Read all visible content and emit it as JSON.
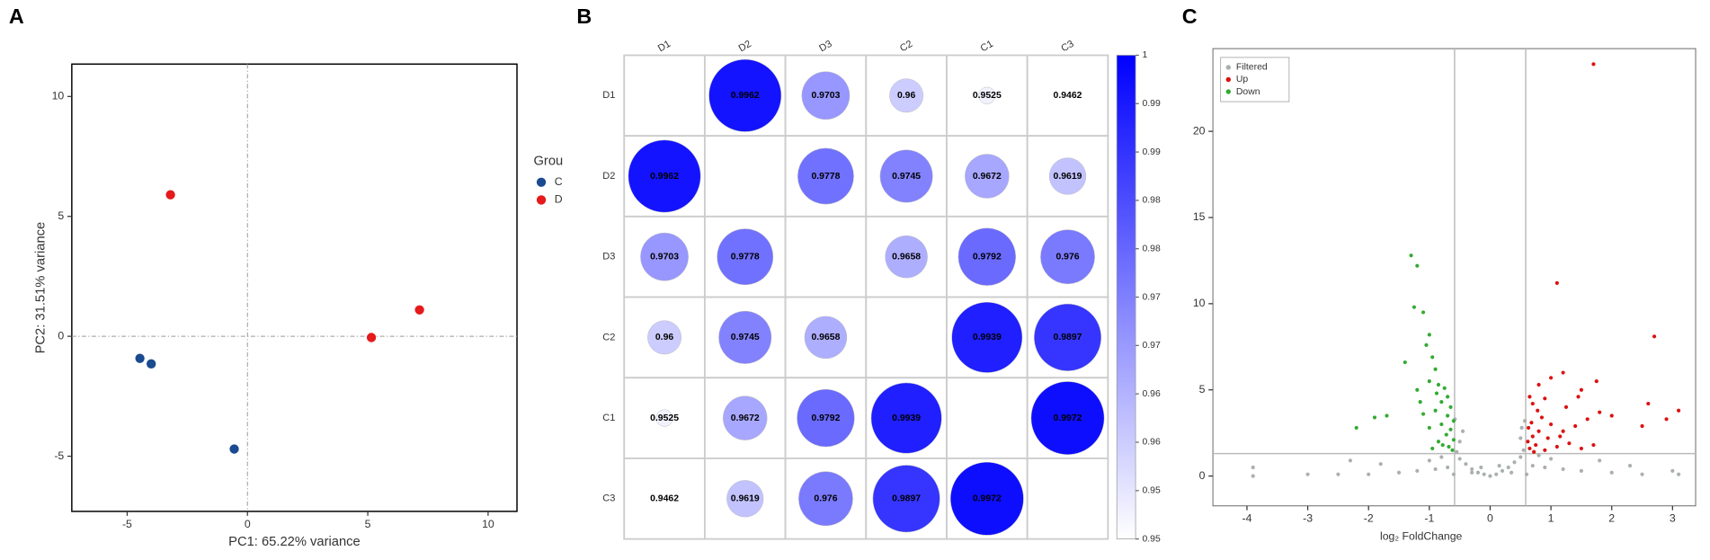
{
  "chart_data": [
    {
      "type": "scatter",
      "panel": "A",
      "xlabel": "PC1: 65.22% variance",
      "ylabel": "PC2: 31.51% variance",
      "xlim": [
        -7.3,
        11.2
      ],
      "ylim": [
        -7.3,
        11.35
      ],
      "xticks": [
        -5,
        0,
        5,
        10
      ],
      "yticks": [
        -5,
        0,
        5,
        10
      ],
      "zero_lines": true,
      "legend_title": "Grou",
      "legend": "right",
      "series": [
        {
          "name": "C",
          "color": "#1a4a8f",
          "x": [
            -4.47,
            -4.0,
            -0.55
          ],
          "y": [
            -0.92,
            -1.15,
            -4.7
          ]
        },
        {
          "name": "D",
          "color": "#e41a1c",
          "x": [
            -3.2,
            5.15,
            7.15
          ],
          "y": [
            5.9,
            -0.05,
            1.1
          ]
        }
      ]
    },
    {
      "type": "correlation",
      "panel": "B",
      "labels": [
        "D1",
        "D2",
        "D3",
        "C2",
        "C1",
        "C3"
      ],
      "matrix": [
        [
          null,
          0.9962,
          0.9703,
          0.96,
          0.9525,
          0.9462
        ],
        [
          0.9962,
          null,
          0.9778,
          0.9745,
          0.9672,
          0.9619
        ],
        [
          0.9703,
          0.9778,
          null,
          0.9658,
          0.9792,
          0.976
        ],
        [
          0.96,
          0.9745,
          0.9658,
          null,
          0.9939,
          0.9897
        ],
        [
          0.9525,
          0.9672,
          0.9792,
          0.9939,
          null,
          0.9972
        ],
        [
          0.9462,
          0.9619,
          0.976,
          0.9897,
          0.9972,
          null
        ]
      ],
      "colorlim": [
        0.95,
        1
      ],
      "colors": [
        "#ffffff",
        "#0000ff"
      ],
      "colorticks": [
        1,
        {
          "value": 0.995,
          "label": "0.99"
        },
        {
          "value": 0.99,
          "label": "0.99"
        },
        {
          "value": 0.985,
          "label": "0.98"
        },
        {
          "value": 0.98,
          "label": "0.98"
        },
        {
          "value": 0.975,
          "label": "0.97"
        },
        {
          "value": 0.97,
          "label": "0.97"
        },
        {
          "value": 0.965,
          "label": "0.96"
        },
        {
          "value": 0.96,
          "label": "0.96"
        },
        {
          "value": 0.955,
          "label": "0.95"
        },
        {
          "value": 0.95,
          "label": "0.95"
        }
      ]
    },
    {
      "type": "scatter",
      "panel": "C",
      "xlabel": "log₂ FoldChange",
      "xlim": [
        -4.56,
        3.38
      ],
      "ylim": [
        -1.73,
        24.8
      ],
      "xticks": [
        -4,
        -3,
        -2,
        -1,
        0,
        1,
        2,
        3
      ],
      "yticks": [
        0,
        5,
        10,
        15,
        20
      ],
      "threshold_x": [
        -0.585,
        0.585
      ],
      "threshold_y": 1.3,
      "legend": "upper left",
      "series": [
        {
          "name": "Filtered",
          "color": "#a9b0b0",
          "x": [
            0,
            -0.1,
            0.1,
            -0.2,
            0.2,
            -0.3,
            0.3,
            -0.4,
            0.4,
            -0.5,
            0.5,
            -0.55,
            0.55,
            -0.5,
            0.5,
            -0.45,
            0.52,
            -0.58,
            0.57,
            -0.3,
            0.35,
            -0.7,
            0.7,
            -0.9,
            0.9,
            -1.2,
            1.2,
            -1.5,
            1.5,
            -2.0,
            2.0,
            -2.5,
            2.5,
            -3.0,
            -3.9,
            -3.9,
            3.1,
            3.0,
            -2.3,
            -1.8,
            1.8,
            -0.6,
            0.6,
            -0.8,
            0.8,
            -1.0,
            1.0,
            2.3,
            -0.15,
            0.15
          ],
          "y": [
            0,
            0.1,
            0.1,
            0.2,
            0.3,
            0.4,
            0.5,
            0.7,
            0.8,
            1.0,
            1.1,
            1.4,
            1.5,
            2.0,
            2.2,
            2.6,
            2.8,
            3.3,
            3.2,
            0.2,
            0.2,
            0.5,
            0.6,
            0.4,
            0.5,
            0.3,
            0.4,
            0.2,
            0.3,
            0.1,
            0.2,
            0.1,
            0.1,
            0.1,
            0.0,
            0.5,
            0.1,
            0.3,
            0.9,
            0.7,
            0.9,
            0.1,
            0.1,
            1.1,
            1.2,
            0.9,
            1.0,
            0.6,
            0.5,
            0.6
          ]
        },
        {
          "name": "Up",
          "color": "#dd1111",
          "x": [
            1.7,
            1.1,
            2.7,
            1.2,
            1.0,
            0.8,
            0.65,
            0.7,
            0.9,
            1.5,
            1.75,
            2.0,
            2.6,
            3.1,
            2.9,
            2.5,
            1.8,
            1.6,
            1.4,
            1.2,
            1.0,
            0.8,
            0.7,
            0.62,
            0.65,
            0.75,
            0.9,
            1.1,
            1.3,
            1.5,
            0.68,
            0.85,
            0.95,
            1.15,
            0.63,
            0.72,
            1.7,
            1.25,
            0.78,
            1.45
          ],
          "y": [
            23.9,
            11.2,
            8.1,
            6.0,
            5.7,
            5.3,
            4.6,
            4.2,
            4.5,
            5.0,
            5.5,
            3.5,
            4.2,
            3.8,
            3.3,
            2.9,
            3.7,
            3.3,
            2.9,
            2.6,
            3.0,
            2.6,
            2.3,
            2.0,
            1.6,
            1.8,
            1.5,
            1.7,
            1.9,
            1.6,
            3.1,
            3.4,
            2.2,
            2.3,
            2.8,
            1.4,
            1.8,
            4.0,
            3.8,
            4.6
          ]
        },
        {
          "name": "Down",
          "color": "#33aa33",
          "x": [
            -1.3,
            -1.2,
            -1.25,
            -1.1,
            -1.0,
            -1.05,
            -0.95,
            -1.4,
            -0.9,
            -1.0,
            -0.85,
            -0.75,
            -1.2,
            -0.7,
            -0.8,
            -0.65,
            -0.9,
            -0.7,
            -1.1,
            -0.6,
            -0.8,
            -0.65,
            -1.0,
            -0.72,
            -0.6,
            -0.85,
            -0.68,
            -0.95,
            -0.62,
            -1.9,
            -2.2,
            -1.7,
            -0.78,
            -1.15,
            -0.88
          ],
          "y": [
            12.8,
            12.2,
            9.8,
            9.5,
            8.2,
            7.6,
            6.9,
            6.6,
            6.2,
            5.5,
            5.3,
            5.1,
            5.0,
            4.6,
            4.3,
            4.0,
            3.8,
            3.5,
            3.6,
            3.2,
            3.0,
            2.7,
            2.8,
            2.4,
            2.1,
            2.0,
            1.7,
            1.6,
            1.5,
            3.4,
            2.8,
            3.5,
            1.8,
            4.3,
            4.8
          ]
        }
      ]
    }
  ]
}
